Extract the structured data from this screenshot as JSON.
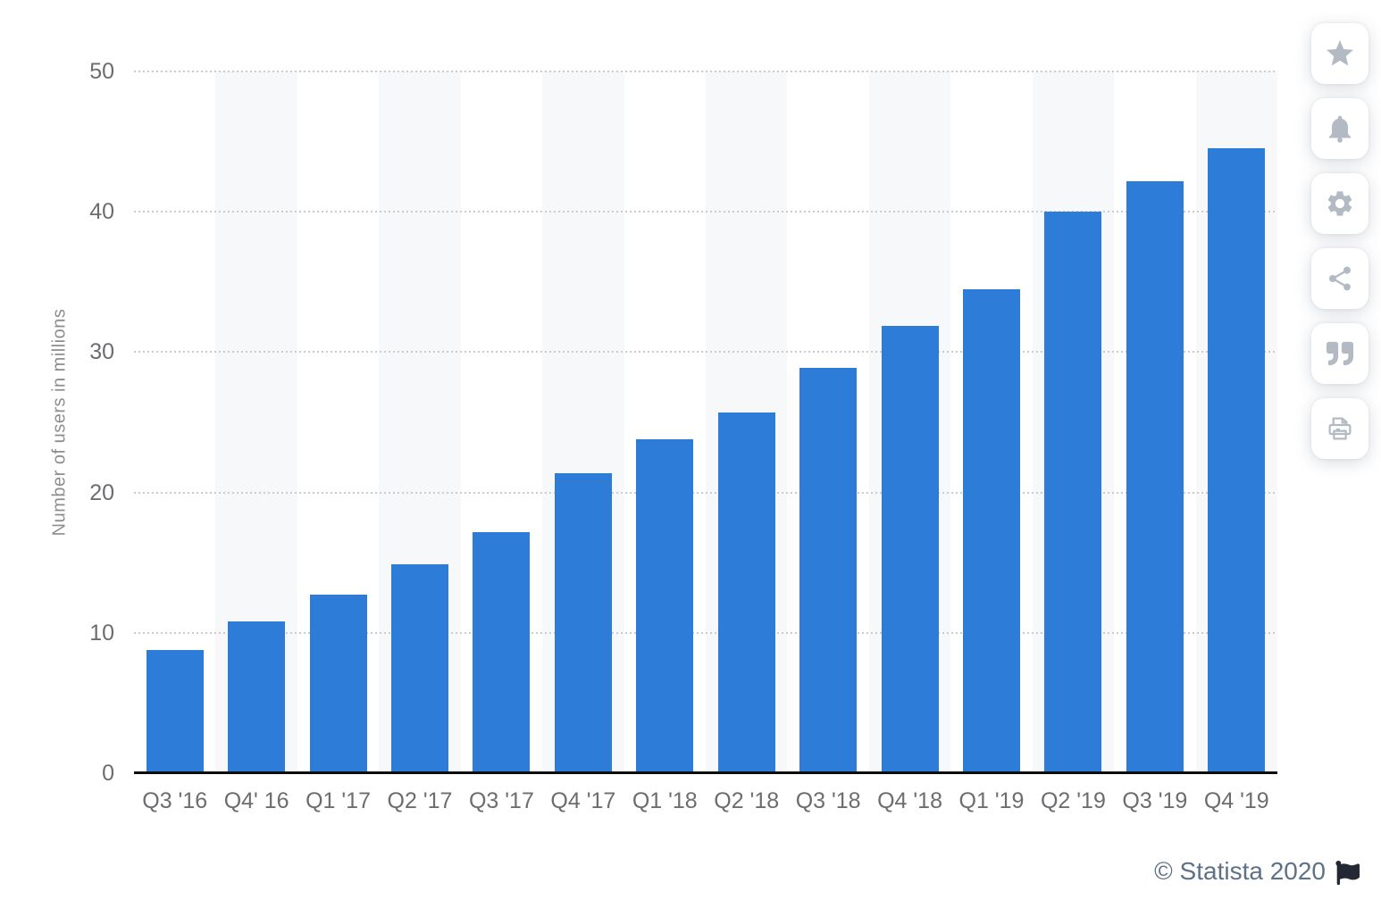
{
  "chart_data": {
    "type": "bar",
    "categories": [
      "Q3 '16",
      "Q4' 16",
      "Q1 '17",
      "Q2 '17",
      "Q3 '17",
      "Q4 '17",
      "Q1 '18",
      "Q2 '18",
      "Q3 '18",
      "Q4 '18",
      "Q1 '19",
      "Q2 '19",
      "Q3 '19",
      "Q4 '19"
    ],
    "values": [
      8.8,
      10.8,
      12.7,
      14.9,
      17.2,
      21.4,
      23.8,
      25.7,
      28.9,
      31.9,
      34.5,
      40.0,
      42.2,
      44.5
    ],
    "title": "",
    "xlabel": "",
    "ylabel": "Number of users in millions",
    "ylim": [
      0,
      50
    ],
    "yticks": [
      0,
      10,
      20,
      30,
      40,
      50
    ],
    "grid": "horizontal-dotted",
    "legend": "none",
    "bar_color": "#2d7cd8",
    "column_band_color": "#f7f8fa",
    "gridline_color": "#c9cbcd",
    "axis_line_color": "#0c0d0f",
    "tick_label_color": "#6b6d70",
    "ylabel_color": "#8b8d91"
  },
  "toolbar": {
    "icon_color": "#b3bac3",
    "buttons": [
      {
        "label": "favorite",
        "icon": "star-icon"
      },
      {
        "label": "notifications",
        "icon": "bell-icon"
      },
      {
        "label": "settings",
        "icon": "gear-icon"
      },
      {
        "label": "share",
        "icon": "share-icon"
      },
      {
        "label": "cite",
        "icon": "quote-icon"
      },
      {
        "label": "print",
        "icon": "printer-icon"
      }
    ]
  },
  "footer": {
    "copyright": "© Statista 2020",
    "text_color": "#5e7187",
    "flag_color": "#232834",
    "flag_icon": "statista-flag-icon"
  }
}
